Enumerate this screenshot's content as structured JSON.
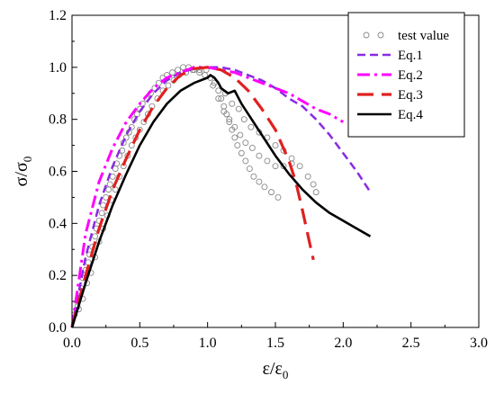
{
  "chart_data": {
    "type": "line",
    "xlabel": "ε/ε",
    "xlabel_sub": "0",
    "ylabel": "σ/σ",
    "ylabel_sub": "0",
    "xlim": [
      0,
      3.0
    ],
    "ylim": [
      0,
      1.2
    ],
    "xticks": [
      "0.0",
      "0.5",
      "1.0",
      "1.5",
      "2.0",
      "2.5",
      "3.0"
    ],
    "yticks": [
      "0.0",
      "0.2",
      "0.4",
      "0.6",
      "0.8",
      "1.0",
      "1.2"
    ],
    "grid": false,
    "legend_position": "top-right",
    "series": [
      {
        "name": "test value",
        "style": "markers",
        "marker": "circle",
        "color": "#888888",
        "points": [
          [
            0.02,
            0.05
          ],
          [
            0.04,
            0.08
          ],
          [
            0.05,
            0.12
          ],
          [
            0.07,
            0.15
          ],
          [
            0.08,
            0.19
          ],
          [
            0.1,
            0.22
          ],
          [
            0.12,
            0.25
          ],
          [
            0.13,
            0.28
          ],
          [
            0.15,
            0.31
          ],
          [
            0.17,
            0.35
          ],
          [
            0.18,
            0.38
          ],
          [
            0.2,
            0.41
          ],
          [
            0.22,
            0.44
          ],
          [
            0.23,
            0.47
          ],
          [
            0.25,
            0.5
          ],
          [
            0.27,
            0.53
          ],
          [
            0.28,
            0.55
          ],
          [
            0.3,
            0.58
          ],
          [
            0.32,
            0.61
          ],
          [
            0.33,
            0.63
          ],
          [
            0.35,
            0.66
          ],
          [
            0.37,
            0.68
          ],
          [
            0.38,
            0.71
          ],
          [
            0.4,
            0.73
          ],
          [
            0.42,
            0.75
          ],
          [
            0.44,
            0.77
          ],
          [
            0.46,
            0.8
          ],
          [
            0.48,
            0.82
          ],
          [
            0.5,
            0.84
          ],
          [
            0.52,
            0.86
          ],
          [
            0.55,
            0.88
          ],
          [
            0.58,
            0.9
          ],
          [
            0.61,
            0.92
          ],
          [
            0.64,
            0.94
          ],
          [
            0.67,
            0.96
          ],
          [
            0.7,
            0.97
          ],
          [
            0.74,
            0.98
          ],
          [
            0.78,
            0.99
          ],
          [
            0.82,
            1.0
          ],
          [
            0.86,
            1.0
          ],
          [
            0.9,
            0.99
          ],
          [
            0.94,
            0.98
          ],
          [
            0.98,
            0.97
          ],
          [
            0.05,
            0.07
          ],
          [
            0.08,
            0.11
          ],
          [
            0.11,
            0.17
          ],
          [
            0.14,
            0.21
          ],
          [
            0.17,
            0.27
          ],
          [
            0.2,
            0.33
          ],
          [
            0.23,
            0.38
          ],
          [
            0.26,
            0.43
          ],
          [
            0.29,
            0.49
          ],
          [
            0.32,
            0.53
          ],
          [
            0.35,
            0.58
          ],
          [
            0.38,
            0.62
          ],
          [
            0.41,
            0.66
          ],
          [
            0.44,
            0.7
          ],
          [
            0.47,
            0.73
          ],
          [
            0.5,
            0.76
          ],
          [
            0.53,
            0.79
          ],
          [
            0.56,
            0.82
          ],
          [
            0.59,
            0.85
          ],
          [
            0.63,
            0.88
          ],
          [
            0.67,
            0.91
          ],
          [
            0.71,
            0.93
          ],
          [
            0.75,
            0.95
          ],
          [
            0.79,
            0.97
          ],
          [
            0.84,
            0.98
          ],
          [
            0.89,
            0.99
          ],
          [
            0.94,
            0.99
          ],
          [
            0.99,
            0.99
          ],
          [
            1.02,
            0.96
          ],
          [
            1.05,
            0.94
          ],
          [
            1.08,
            0.91
          ],
          [
            1.1,
            0.88
          ],
          [
            1.12,
            0.85
          ],
          [
            1.14,
            0.82
          ],
          [
            1.16,
            0.79
          ],
          [
            1.18,
            0.76
          ],
          [
            1.2,
            0.73
          ],
          [
            1.22,
            0.7
          ],
          [
            1.25,
            0.67
          ],
          [
            1.28,
            0.64
          ],
          [
            1.31,
            0.61
          ],
          [
            1.34,
            0.58
          ],
          [
            1.38,
            0.56
          ],
          [
            1.42,
            0.54
          ],
          [
            1.47,
            0.52
          ],
          [
            1.52,
            0.5
          ],
          [
            1.04,
            0.93
          ],
          [
            1.08,
            0.88
          ],
          [
            1.12,
            0.83
          ],
          [
            1.16,
            0.8
          ],
          [
            1.2,
            0.77
          ],
          [
            1.24,
            0.74
          ],
          [
            1.28,
            0.71
          ],
          [
            1.33,
            0.69
          ],
          [
            1.38,
            0.66
          ],
          [
            1.44,
            0.64
          ],
          [
            1.5,
            0.62
          ],
          [
            1.56,
            0.62
          ],
          [
            1.62,
            0.63
          ],
          [
            1.13,
            0.9
          ],
          [
            1.18,
            0.86
          ],
          [
            1.23,
            0.84
          ],
          [
            1.27,
            0.8
          ],
          [
            1.32,
            0.77
          ],
          [
            1.38,
            0.75
          ],
          [
            1.44,
            0.73
          ],
          [
            1.5,
            0.7
          ],
          [
            1.56,
            0.68
          ],
          [
            1.62,
            0.65
          ],
          [
            1.68,
            0.62
          ],
          [
            1.74,
            0.58
          ],
          [
            1.78,
            0.55
          ],
          [
            1.8,
            0.52
          ]
        ]
      },
      {
        "name": "Eq.1",
        "style": "dash",
        "color": "#8a2be2",
        "x": [
          0.0,
          0.1,
          0.2,
          0.3,
          0.4,
          0.5,
          0.6,
          0.7,
          0.8,
          0.9,
          1.0,
          1.1,
          1.2,
          1.3,
          1.4,
          1.5,
          1.6,
          1.7,
          1.8,
          1.9,
          2.0,
          2.1,
          2.2
        ],
        "y": [
          0.0,
          0.27,
          0.47,
          0.62,
          0.74,
          0.83,
          0.9,
          0.95,
          0.98,
          0.995,
          1.0,
          1.0,
          0.99,
          0.97,
          0.95,
          0.92,
          0.88,
          0.85,
          0.8,
          0.74,
          0.67,
          0.6,
          0.52
        ]
      },
      {
        "name": "Eq.2",
        "style": "dash-dot",
        "color": "#ff00ff",
        "x": [
          0.0,
          0.1,
          0.2,
          0.3,
          0.4,
          0.5,
          0.6,
          0.7,
          0.8,
          0.9,
          1.0,
          1.1,
          1.2,
          1.3,
          1.4,
          1.5,
          1.6,
          1.7,
          1.8,
          1.9,
          2.0
        ],
        "y": [
          0.0,
          0.36,
          0.56,
          0.69,
          0.79,
          0.86,
          0.92,
          0.96,
          0.98,
          1.0,
          1.0,
          0.99,
          0.98,
          0.96,
          0.94,
          0.92,
          0.9,
          0.87,
          0.84,
          0.82,
          0.79
        ]
      },
      {
        "name": "Eq.3",
        "style": "long-dash",
        "color": "#e02020",
        "x": [
          0.0,
          0.1,
          0.2,
          0.3,
          0.4,
          0.5,
          0.6,
          0.7,
          0.8,
          0.9,
          1.0,
          1.1,
          1.2,
          1.3,
          1.4,
          1.5,
          1.6,
          1.65,
          1.7,
          1.75,
          1.78
        ],
        "y": [
          0.0,
          0.2,
          0.38,
          0.53,
          0.65,
          0.76,
          0.85,
          0.92,
          0.97,
          0.995,
          1.0,
          0.99,
          0.96,
          0.91,
          0.84,
          0.76,
          0.64,
          0.56,
          0.45,
          0.33,
          0.26
        ]
      },
      {
        "name": "Eq.4",
        "style": "solid",
        "color": "#000000",
        "x": [
          0.0,
          0.1,
          0.2,
          0.3,
          0.4,
          0.5,
          0.6,
          0.7,
          0.8,
          0.9,
          1.0,
          1.02,
          1.05,
          1.08,
          1.1,
          1.15,
          1.2,
          1.25,
          1.3,
          1.4,
          1.5,
          1.6,
          1.7,
          1.8,
          1.9,
          2.0,
          2.1,
          2.2
        ],
        "y": [
          0.0,
          0.17,
          0.33,
          0.47,
          0.59,
          0.7,
          0.79,
          0.86,
          0.91,
          0.94,
          0.96,
          0.97,
          0.96,
          0.94,
          0.92,
          0.9,
          0.91,
          0.86,
          0.82,
          0.74,
          0.66,
          0.59,
          0.53,
          0.48,
          0.44,
          0.41,
          0.38,
          0.35
        ]
      }
    ]
  }
}
